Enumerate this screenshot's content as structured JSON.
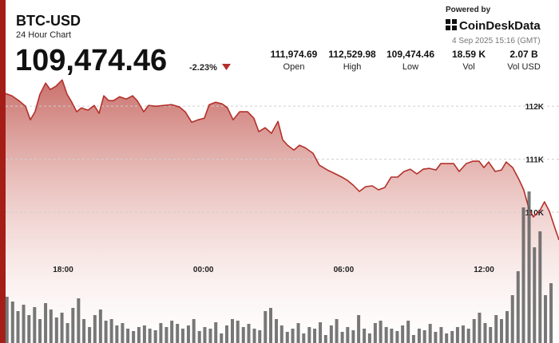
{
  "header": {
    "symbol": "BTC-USD",
    "subtitle": "24 Hour Chart",
    "price": "109,474.46",
    "change": "-2.23%",
    "powered_by": "Powered by",
    "brand": "CoinDeskData",
    "timestamp": "4 Sep 2025 15:16 (GMT)"
  },
  "stats": [
    {
      "value": "111,974.69",
      "label": "Open"
    },
    {
      "value": "112,529.98",
      "label": "High"
    },
    {
      "value": "109,474.46",
      "label": "Low"
    },
    {
      "value": "18.59 K",
      "label": "Vol"
    },
    {
      "value": "2.07 B",
      "label": "Vol USD"
    }
  ],
  "chart_data": [
    {
      "type": "area",
      "color": "#b3302a",
      "x": [
        15.54,
        15.81,
        16.15,
        16.39,
        16.6,
        16.8,
        17.01,
        17.25,
        17.45,
        17.69,
        17.96,
        18.17,
        18.37,
        18.58,
        18.78,
        19.06,
        19.33,
        19.54,
        19.74,
        19.95,
        20.15,
        20.42,
        20.7,
        20.97,
        21.17,
        21.45,
        21.65,
        21.96,
        22.3,
        22.64,
        22.98,
        23.22,
        23.5,
        23.77,
        24.04,
        24.25,
        24.52,
        24.8,
        25.03,
        25.27,
        25.55,
        25.89,
        26.16,
        26.37,
        26.64,
        26.91,
        27.19,
        27.39,
        27.6,
        27.87,
        28.11,
        28.35,
        28.69,
        28.96,
        29.3,
        29.58,
        29.92,
        30.16,
        30.4,
        30.67,
        30.94,
        31.22,
        31.49,
        31.76,
        32.03,
        32.31,
        32.58,
        32.85,
        33.13,
        33.4,
        33.67,
        33.95,
        34.15,
        34.43,
        34.7,
        34.94,
        35.24,
        35.52,
        35.79,
        36.0,
        36.2,
        36.48,
        36.75,
        36.95,
        37.23,
        37.5,
        37.7,
        37.91,
        38.11,
        38.39,
        38.59,
        38.8,
        39.0,
        39.21
      ],
      "values": [
        112241,
        112196,
        112090,
        112000,
        111744,
        111895,
        112226,
        112436,
        112316,
        112376,
        112496,
        112226,
        112075,
        111895,
        111970,
        111925,
        112015,
        111865,
        112196,
        112105,
        112105,
        112180,
        112135,
        112196,
        112105,
        111895,
        112015,
        112000,
        112015,
        112030,
        111985,
        111895,
        111699,
        111744,
        111774,
        112030,
        112075,
        112045,
        111970,
        111744,
        111895,
        111895,
        111774,
        111519,
        111594,
        111489,
        111714,
        111368,
        111263,
        111173,
        111263,
        111218,
        111113,
        110887,
        110797,
        110737,
        110662,
        110601,
        110511,
        110391,
        110481,
        110496,
        110421,
        110466,
        110662,
        110662,
        110767,
        110812,
        110722,
        110812,
        110827,
        110797,
        110917,
        110917,
        110917,
        110767,
        110917,
        110962,
        110962,
        110842,
        110947,
        110767,
        110797,
        110947,
        110842,
        110616,
        110421,
        110090,
        109910,
        110030,
        110195,
        110015,
        109744,
        109474.46
      ],
      "xlim": [
        15.54,
        39.21
      ],
      "xticks": [
        {
          "value": 18,
          "label": "18:00"
        },
        {
          "value": 24,
          "label": "00:00"
        },
        {
          "value": 30,
          "label": "06:00"
        },
        {
          "value": 36,
          "label": "12:00"
        }
      ],
      "ylim": [
        107530,
        112650
      ],
      "yticks": [
        {
          "value": 110000,
          "label": "110K"
        },
        {
          "value": 111000,
          "label": "111K"
        },
        {
          "value": 112000,
          "label": "112K"
        }
      ],
      "grid": true
    },
    {
      "type": "bar",
      "color": "#5f5f5f",
      "x": [
        15.6,
        15.84,
        16.07,
        16.31,
        16.54,
        16.78,
        17.01,
        17.25,
        17.48,
        17.72,
        17.95,
        18.19,
        18.42,
        18.66,
        18.89,
        19.13,
        19.36,
        19.6,
        19.83,
        20.07,
        20.3,
        20.54,
        20.77,
        21.01,
        21.24,
        21.48,
        21.71,
        21.95,
        22.18,
        22.42,
        22.65,
        22.89,
        23.12,
        23.36,
        23.59,
        23.83,
        24.06,
        24.3,
        24.53,
        24.77,
        25.0,
        25.24,
        25.47,
        25.71,
        25.94,
        26.18,
        26.41,
        26.65,
        26.88,
        27.12,
        27.35,
        27.59,
        27.82,
        28.06,
        28.29,
        28.53,
        28.76,
        29.0,
        29.23,
        29.47,
        29.7,
        29.94,
        30.17,
        30.41,
        30.64,
        30.88,
        31.11,
        31.35,
        31.58,
        31.82,
        32.05,
        32.29,
        32.52,
        32.76,
        32.99,
        33.23,
        33.46,
        33.7,
        33.93,
        34.17,
        34.4,
        34.64,
        34.87,
        35.11,
        35.34,
        35.58,
        35.81,
        36.05,
        36.28,
        36.52,
        36.75,
        36.99,
        37.22,
        37.46,
        37.69,
        37.93,
        38.16,
        38.4,
        38.63,
        38.87
      ],
      "values": [
        58,
        52,
        40,
        48,
        35,
        45,
        30,
        50,
        42,
        32,
        38,
        25,
        44,
        56,
        30,
        20,
        35,
        42,
        28,
        30,
        22,
        25,
        18,
        15,
        20,
        22,
        18,
        16,
        25,
        20,
        28,
        24,
        18,
        22,
        30,
        15,
        20,
        18,
        26,
        12,
        22,
        30,
        28,
        20,
        24,
        18,
        16,
        40,
        44,
        30,
        22,
        14,
        18,
        25,
        12,
        20,
        18,
        26,
        10,
        22,
        30,
        14,
        20,
        16,
        35,
        18,
        12,
        25,
        28,
        20,
        18,
        15,
        22,
        28,
        10,
        18,
        16,
        24,
        14,
        20,
        12,
        15,
        20,
        22,
        18,
        30,
        38,
        25,
        20,
        35,
        30,
        40,
        60,
        90,
        170,
        190,
        120,
        140,
        60,
        75
      ],
      "xlim": [
        15.54,
        39.21
      ],
      "ylim": [
        0,
        200
      ]
    }
  ]
}
